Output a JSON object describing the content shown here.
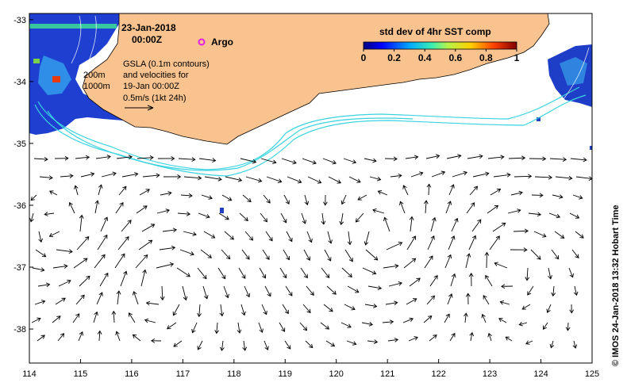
{
  "map": {
    "date_line": "23-Jan-2018",
    "time_line": "00:00Z",
    "argo_label": "Argo",
    "gsla_lines": [
      "GSLA (0.1m contours)",
      "and velocities for",
      "19-Jan 00:00Z",
      "0.5m/s (1kt 24h)"
    ],
    "isobath_200": "200m",
    "isobath_1000": "1000m",
    "credit": "© IMOS 24-Jan-2018 13:32 Hobart Time",
    "colorbar": {
      "title": "std dev of 4hr SST comp",
      "ticks": [
        "0",
        "0.2",
        "0.4",
        "0.6",
        "0.8",
        "1"
      ],
      "min": 0,
      "max": 1
    },
    "axes": {
      "x_labels": [
        "114",
        "115",
        "116",
        "117",
        "118",
        "119",
        "120",
        "121",
        "122",
        "123",
        "124",
        "125"
      ],
      "y_labels": [
        "-33",
        "-34",
        "-35",
        "-36",
        "-37",
        "-38"
      ],
      "lon_range": [
        114,
        125
      ],
      "lat_range": [
        -38.55,
        -32.9
      ]
    },
    "colors": {
      "land": "#f9c38f",
      "contour": "#39d3e0",
      "arrow": "#000000",
      "argo": "#e020e0"
    }
  }
}
